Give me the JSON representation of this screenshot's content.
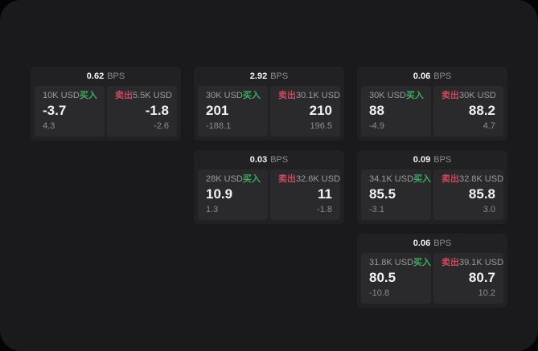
{
  "labels": {
    "buy": "买入",
    "sell": "卖出"
  },
  "units": {
    "bps": "BPS"
  },
  "colors": {
    "window": "#1a1a1c",
    "card": "#212123",
    "panel": "#2a2a2c",
    "text_primary": "#f2f2f3",
    "text_secondary": "#9b9b9e",
    "text_dim": "#8c8c8f",
    "buy_green": "#3cab5e",
    "sell_red": "#c9485e"
  },
  "cards": [
    {
      "bps": "0.62",
      "buy": {
        "amount": "10K USD",
        "value": "-3.7",
        "sub": "4.3"
      },
      "sell": {
        "amount": "5.5K USD",
        "value": "-1.8",
        "sub": "-2.6"
      }
    },
    {
      "bps": "2.92",
      "buy": {
        "amount": "30K USD",
        "value": "201",
        "sub": "-188.1"
      },
      "sell": {
        "amount": "30.1K USD",
        "value": "210",
        "sub": "196.5"
      }
    },
    {
      "bps": "0.06",
      "buy": {
        "amount": "30K USD",
        "value": "88",
        "sub": "-4.9"
      },
      "sell": {
        "amount": "30K USD",
        "value": "88.2",
        "sub": "4.7"
      }
    },
    {
      "bps": "0.03",
      "buy": {
        "amount": "28K USD",
        "value": "10.9",
        "sub": "1.3"
      },
      "sell": {
        "amount": "32.6K USD",
        "value": "11",
        "sub": "-1.8"
      }
    },
    {
      "bps": "0.09",
      "buy": {
        "amount": "34.1K USD",
        "value": "85.5",
        "sub": "-3.1"
      },
      "sell": {
        "amount": "32.8K USD",
        "value": "85.8",
        "sub": "3.0"
      }
    },
    {
      "bps": "0.06",
      "buy": {
        "amount": "31.8K USD",
        "value": "80.5",
        "sub": "-10.8"
      },
      "sell": {
        "amount": "39.1K USD",
        "value": "80.7",
        "sub": "10.2"
      }
    }
  ]
}
